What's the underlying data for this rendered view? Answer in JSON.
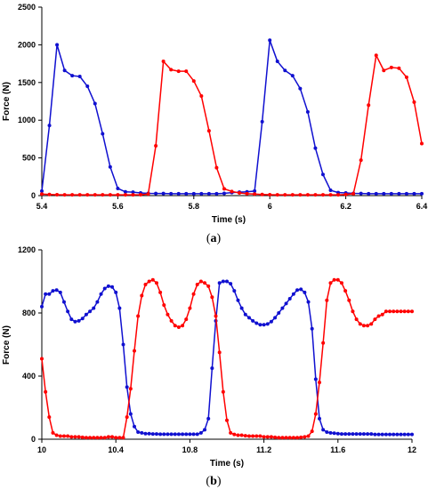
{
  "chart_data": [
    {
      "type": "line",
      "panel_label": "(a)",
      "panel_letter": "a",
      "xlabel": "Time (s)",
      "ylabel": "Force (N)",
      "xlim": [
        5.4,
        6.4
      ],
      "ylim": [
        0,
        2500
      ],
      "xticks": [
        5.4,
        5.6,
        5.8,
        6,
        6.2,
        6.4
      ],
      "xtick_labels": [
        "5.4",
        "5.6",
        "5.8",
        "6",
        "6.2",
        "6.4"
      ],
      "yticks": [
        0,
        500,
        1000,
        1500,
        2000,
        2500
      ],
      "ytick_labels": [
        "0",
        "500",
        "1000",
        "1500",
        "2000",
        "2500"
      ],
      "grid": false,
      "series": [
        {
          "color": "#1010d0",
          "x": [
            5.4,
            5.42,
            5.44,
            5.46,
            5.48,
            5.5,
            5.52,
            5.54,
            5.56,
            5.58,
            5.6,
            5.62,
            5.64,
            5.66,
            5.68,
            5.7,
            5.72,
            5.74,
            5.76,
            5.78,
            5.8,
            5.82,
            5.84,
            5.86,
            5.88,
            5.9,
            5.92,
            5.94,
            5.96,
            5.98,
            6.0,
            6.02,
            6.04,
            6.06,
            6.08,
            6.1,
            6.12,
            6.14,
            6.16,
            6.18,
            6.2,
            6.22,
            6.24,
            6.26,
            6.28,
            6.3,
            6.32,
            6.34,
            6.36,
            6.38,
            6.4
          ],
          "y": [
            60,
            930,
            2000,
            1660,
            1590,
            1580,
            1450,
            1220,
            820,
            380,
            95,
            50,
            45,
            35,
            30,
            28,
            28,
            25,
            25,
            25,
            25,
            25,
            25,
            25,
            30,
            40,
            45,
            50,
            60,
            980,
            2060,
            1780,
            1660,
            1590,
            1420,
            1110,
            630,
            280,
            70,
            40,
            35,
            30,
            28,
            25,
            25,
            25,
            25,
            25,
            25,
            25,
            25
          ]
        },
        {
          "color": "#ff0000",
          "x": [
            5.4,
            5.42,
            5.44,
            5.46,
            5.48,
            5.5,
            5.52,
            5.54,
            5.56,
            5.58,
            5.6,
            5.62,
            5.64,
            5.66,
            5.68,
            5.7,
            5.72,
            5.74,
            5.76,
            5.78,
            5.8,
            5.82,
            5.84,
            5.86,
            5.88,
            5.9,
            5.92,
            5.94,
            5.96,
            5.98,
            6.0,
            6.02,
            6.04,
            6.06,
            6.08,
            6.1,
            6.12,
            6.14,
            6.16,
            6.18,
            6.2,
            6.22,
            6.24,
            6.26,
            6.28,
            6.3,
            6.32,
            6.34,
            6.36,
            6.38,
            6.4
          ],
          "y": [
            20,
            15,
            12,
            10,
            10,
            10,
            10,
            10,
            10,
            10,
            10,
            10,
            10,
            12,
            20,
            660,
            1780,
            1670,
            1650,
            1650,
            1520,
            1320,
            860,
            370,
            90,
            55,
            35,
            25,
            20,
            15,
            12,
            10,
            10,
            10,
            10,
            10,
            10,
            10,
            10,
            10,
            15,
            25,
            470,
            1200,
            1860,
            1660,
            1700,
            1690,
            1570,
            1240,
            690
          ]
        }
      ]
    },
    {
      "type": "line",
      "panel_label": "(b)",
      "panel_letter": "b",
      "xlabel": "Time (s)",
      "ylabel": "Force (N)",
      "xlim": [
        10,
        12
      ],
      "ylim": [
        0,
        1200
      ],
      "xticks": [
        10,
        10.4,
        10.8,
        11.2,
        11.6,
        12
      ],
      "xtick_labels": [
        "10",
        "10.4",
        "10.8",
        "11.2",
        "11.6",
        "12"
      ],
      "yticks": [
        0,
        400,
        800,
        1200
      ],
      "ytick_labels": [
        "0",
        "400",
        "800",
        "1200"
      ],
      "grid": false,
      "series": [
        {
          "color": "#1010d0",
          "x": [
            10.0,
            10.02,
            10.04,
            10.06,
            10.08,
            10.1,
            10.12,
            10.14,
            10.16,
            10.18,
            10.2,
            10.22,
            10.24,
            10.26,
            10.28,
            10.3,
            10.32,
            10.34,
            10.36,
            10.38,
            10.4,
            10.42,
            10.44,
            10.46,
            10.48,
            10.5,
            10.52,
            10.54,
            10.56,
            10.58,
            10.6,
            10.62,
            10.64,
            10.66,
            10.68,
            10.7,
            10.72,
            10.74,
            10.76,
            10.78,
            10.8,
            10.82,
            10.84,
            10.86,
            10.88,
            10.9,
            10.92,
            10.94,
            10.96,
            10.98,
            11.0,
            11.02,
            11.04,
            11.06,
            11.08,
            11.1,
            11.12,
            11.14,
            11.16,
            11.18,
            11.2,
            11.22,
            11.24,
            11.26,
            11.28,
            11.3,
            11.32,
            11.34,
            11.36,
            11.38,
            11.4,
            11.42,
            11.44,
            11.46,
            11.48,
            11.5,
            11.52,
            11.54,
            11.56,
            11.58,
            11.6,
            11.62,
            11.64,
            11.66,
            11.68,
            11.7,
            11.72,
            11.74,
            11.76,
            11.78,
            11.8,
            11.82,
            11.84,
            11.86,
            11.88,
            11.9,
            11.92,
            11.94,
            11.96,
            11.98,
            12.0
          ],
          "y": [
            840,
            920,
            920,
            940,
            945,
            930,
            870,
            810,
            760,
            745,
            750,
            765,
            790,
            810,
            830,
            870,
            920,
            955,
            970,
            965,
            930,
            830,
            600,
            330,
            160,
            80,
            45,
            40,
            35,
            35,
            33,
            33,
            32,
            32,
            32,
            32,
            32,
            32,
            32,
            32,
            32,
            32,
            32,
            40,
            60,
            130,
            450,
            750,
            990,
            1000,
            1000,
            985,
            940,
            880,
            830,
            790,
            770,
            750,
            735,
            725,
            725,
            730,
            745,
            770,
            800,
            830,
            860,
            890,
            920,
            945,
            950,
            930,
            870,
            700,
            380,
            130,
            60,
            45,
            40,
            38,
            35,
            33,
            33,
            33,
            33,
            33,
            33,
            33,
            33,
            33,
            30,
            30,
            30,
            30,
            30,
            30,
            30,
            30,
            30,
            30,
            30
          ]
        },
        {
          "color": "#ff0000",
          "x": [
            10.0,
            10.02,
            10.04,
            10.06,
            10.08,
            10.1,
            10.12,
            10.14,
            10.16,
            10.18,
            10.2,
            10.22,
            10.24,
            10.26,
            10.28,
            10.3,
            10.32,
            10.34,
            10.36,
            10.38,
            10.4,
            10.42,
            10.44,
            10.46,
            10.48,
            10.5,
            10.52,
            10.54,
            10.56,
            10.58,
            10.6,
            10.62,
            10.64,
            10.66,
            10.68,
            10.7,
            10.72,
            10.74,
            10.76,
            10.78,
            10.8,
            10.82,
            10.84,
            10.86,
            10.88,
            10.9,
            10.92,
            10.94,
            10.96,
            10.98,
            11.0,
            11.02,
            11.04,
            11.06,
            11.08,
            11.1,
            11.12,
            11.14,
            11.16,
            11.18,
            11.2,
            11.22,
            11.24,
            11.26,
            11.28,
            11.3,
            11.32,
            11.34,
            11.36,
            11.38,
            11.4,
            11.42,
            11.44,
            11.46,
            11.48,
            11.5,
            11.52,
            11.54,
            11.56,
            11.58,
            11.6,
            11.62,
            11.64,
            11.66,
            11.68,
            11.7,
            11.72,
            11.74,
            11.76,
            11.78,
            11.8,
            11.82,
            11.84,
            11.86,
            11.88,
            11.9,
            11.92,
            11.94,
            11.96,
            11.98,
            12.0
          ],
          "y": [
            510,
            300,
            140,
            40,
            25,
            20,
            20,
            20,
            15,
            15,
            15,
            12,
            10,
            10,
            10,
            10,
            10,
            10,
            15,
            15,
            10,
            10,
            10,
            140,
            320,
            560,
            780,
            910,
            980,
            1000,
            1010,
            990,
            930,
            850,
            790,
            750,
            720,
            710,
            720,
            760,
            830,
            920,
            980,
            1000,
            990,
            970,
            900,
            780,
            550,
            300,
            120,
            40,
            30,
            25,
            25,
            22,
            20,
            20,
            20,
            20,
            15,
            15,
            15,
            12,
            10,
            10,
            10,
            10,
            10,
            10,
            12,
            15,
            20,
            50,
            160,
            360,
            610,
            880,
            990,
            1010,
            1010,
            990,
            940,
            880,
            810,
            760,
            730,
            720,
            720,
            730,
            760,
            780,
            790,
            810,
            810,
            810,
            810,
            810,
            810,
            810,
            810
          ]
        }
      ]
    }
  ]
}
